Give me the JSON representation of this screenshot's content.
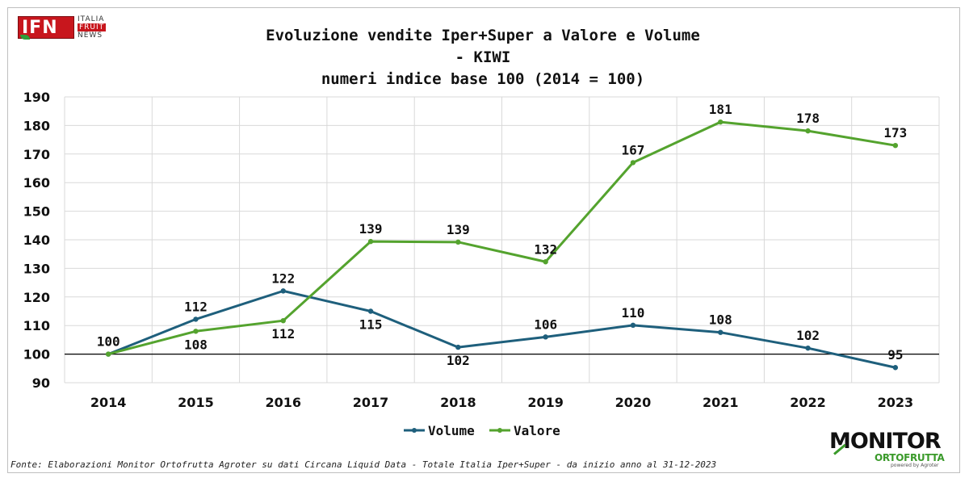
{
  "logo_ifn": {
    "main": "IFN",
    "line1": "ITALIA",
    "line2": "FRUIT",
    "line3": "NEWS"
  },
  "logo_monitor": {
    "main": "MONITOR",
    "sub": "ORTOFRUTTA",
    "powered": "powered by Agroter"
  },
  "source": "Fonte: Elaborazioni Monitor Ortofrutta Agroter su dati Circana Liquid Data - Totale Italia Iper+Super -  da inizio anno al 31-12-2023",
  "colors": {
    "volume": "#1e5f7c",
    "valore": "#54a32e",
    "grid": "#d9d9d9",
    "baseline": "#000000"
  },
  "chart_data": {
    "type": "line",
    "title_lines": [
      "Evoluzione vendite Iper+Super a Valore e Volume",
      "- KIWI",
      "numeri indice base 100 (2014 = 100)"
    ],
    "categories": [
      "2014",
      "2015",
      "2016",
      "2017",
      "2018",
      "2019",
      "2020",
      "2021",
      "2022",
      "2023"
    ],
    "y_ticks": [
      "90",
      "100",
      "110",
      "120",
      "130",
      "140",
      "150",
      "160",
      "170",
      "180",
      "190"
    ],
    "ylim": [
      90,
      190
    ],
    "baseline": 100,
    "grid": true,
    "legend_position": "bottom",
    "series": [
      {
        "name": "Volume",
        "color": "#1e5f7c",
        "values": [
          100,
          112.2,
          122.1,
          115,
          102.4,
          106,
          110.1,
          107.6,
          102.1,
          95.3
        ],
        "labels": [
          "100",
          "112",
          "122",
          "115",
          "102",
          "106",
          "110",
          "108",
          "102",
          "95"
        ]
      },
      {
        "name": "Valore",
        "color": "#54a32e",
        "values": [
          100,
          108,
          111.7,
          139.4,
          139.2,
          132.3,
          167,
          181.2,
          178.1,
          173
        ],
        "labels": [
          "",
          "108",
          "112",
          "139",
          "139",
          "132",
          "167",
          "181",
          "178",
          "173"
        ]
      }
    ]
  }
}
